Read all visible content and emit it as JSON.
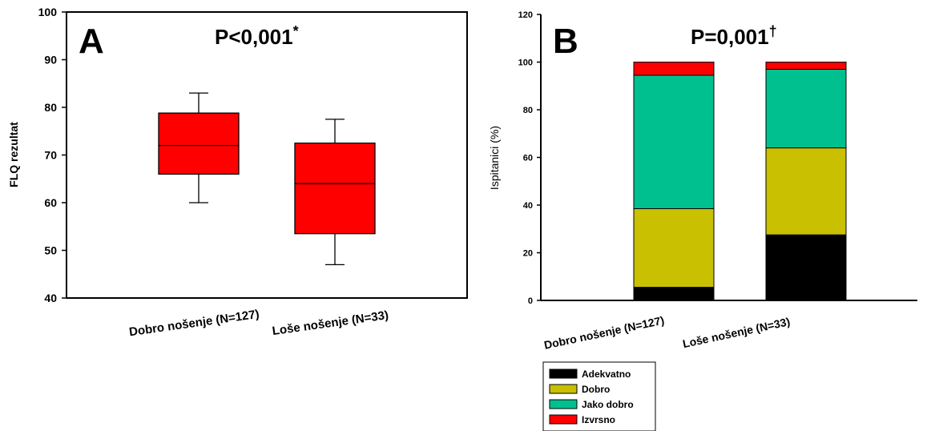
{
  "chart_data": [
    {
      "type": "box",
      "panel_label": "A",
      "annotation": {
        "text": "P<0,001",
        "superscript": "*"
      },
      "ylabel": "FLQ rezultat",
      "ylim": [
        40,
        100
      ],
      "yticks": [
        40,
        50,
        60,
        70,
        80,
        90,
        100
      ],
      "categories": [
        "Dobro nošenje (N=127)",
        "Loše nošenje (N=33)"
      ],
      "boxes": [
        {
          "whisker_low": 60,
          "q1": 66,
          "median": 72,
          "q3": 78.8,
          "whisker_high": 83
        },
        {
          "whisker_low": 47,
          "q1": 53.5,
          "median": 64,
          "q3": 72.5,
          "whisker_high": 77.5
        }
      ],
      "color": "#ff0000"
    },
    {
      "type": "bar",
      "stacked": true,
      "panel_label": "B",
      "annotation": {
        "text": "P=0,001",
        "superscript": "†"
      },
      "ylabel": "Ispitanici (%)",
      "ylim": [
        0,
        120
      ],
      "yticks": [
        0,
        20,
        40,
        60,
        80,
        100,
        120
      ],
      "categories": [
        "Dobro nošenje (N=127)",
        "Loše nošenje (N=33)"
      ],
      "series": [
        {
          "name": "Adekvatno",
          "color": "#000000",
          "values": [
            5.5,
            27.5
          ]
        },
        {
          "name": "Dobro",
          "color": "#c8c000",
          "values": [
            33,
            36.5
          ]
        },
        {
          "name": "Jako dobro",
          "color": "#00c090",
          "values": [
            56,
            33
          ]
        },
        {
          "name": "Izvrsno",
          "color": "#ff0000",
          "values": [
            5.5,
            3
          ]
        }
      ],
      "legend_position": "bottom-left"
    }
  ]
}
